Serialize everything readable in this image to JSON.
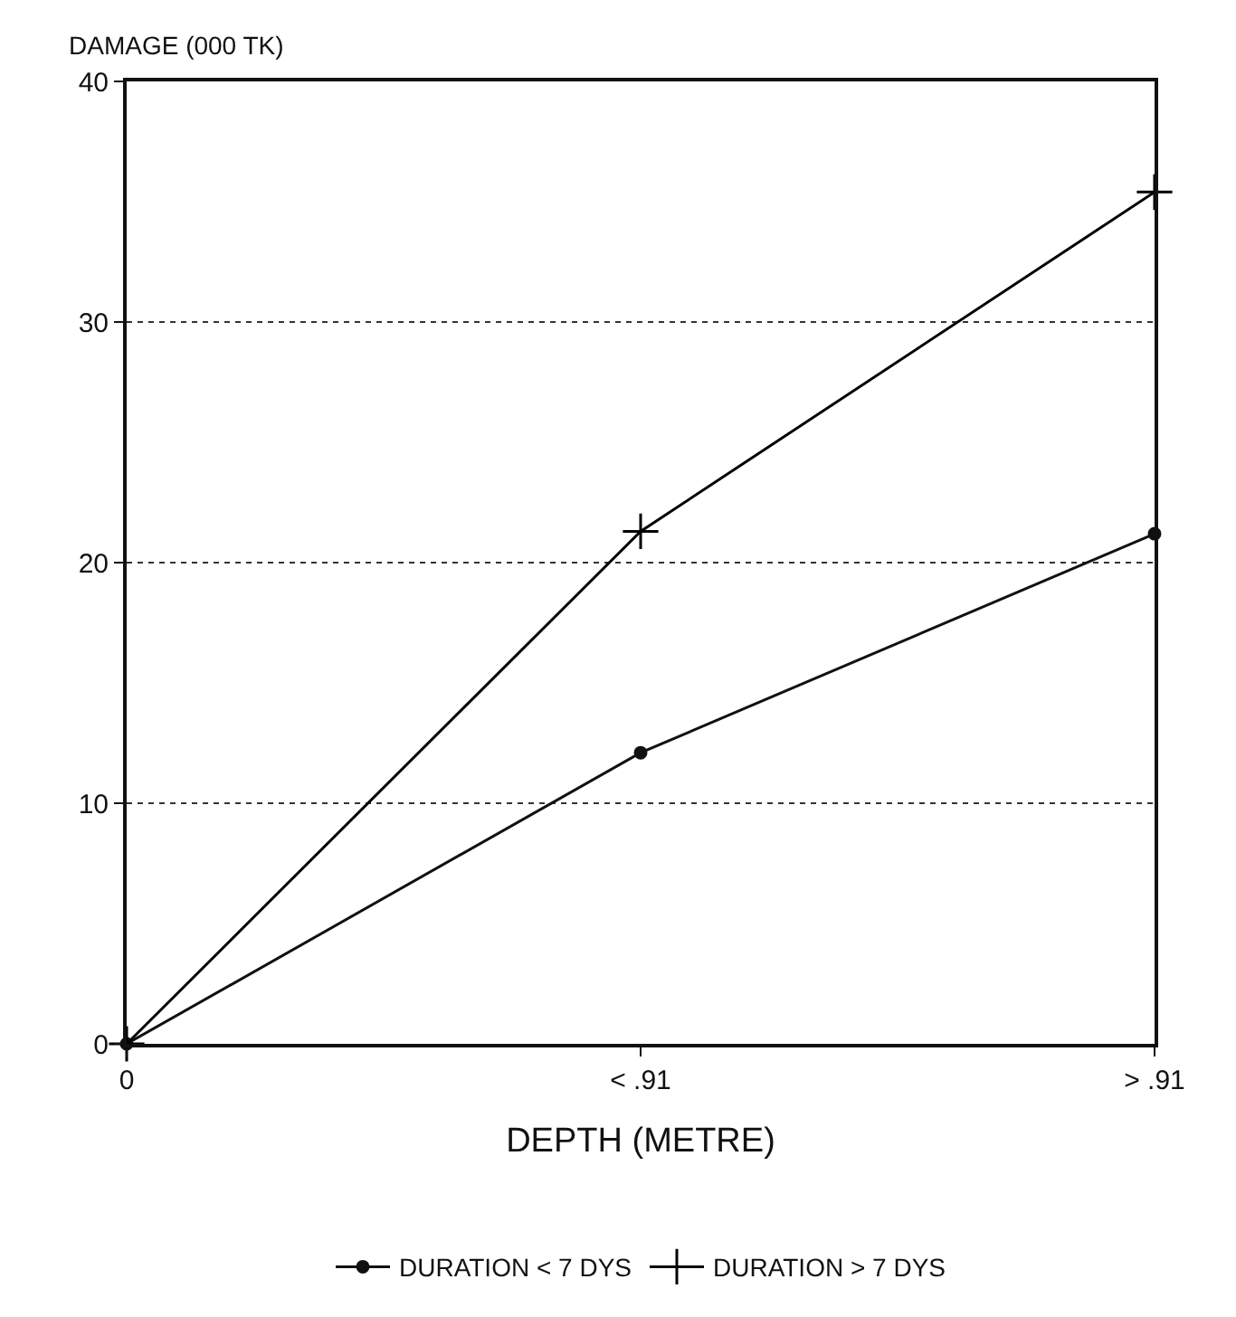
{
  "chart_data": {
    "type": "line",
    "ylabel": "DAMAGE (000 TK)",
    "xlabel": "DEPTH (METRE)",
    "categories": [
      "0",
      "< .91",
      "> .91"
    ],
    "series": [
      {
        "name": "DURATION < 7 DYS",
        "color": "#111111",
        "marker": "circle",
        "values": [
          0,
          12.1,
          21.2
        ]
      },
      {
        "name": "DURATION > 7 DYS",
        "color": "#000000",
        "marker": "cross",
        "values": [
          0,
          21.3,
          35.4
        ]
      }
    ],
    "ylim": [
      0,
      40
    ],
    "yticks": [
      0,
      10,
      20,
      30,
      40
    ],
    "grid": "y",
    "legend": "bottom",
    "line_style": "solid"
  }
}
